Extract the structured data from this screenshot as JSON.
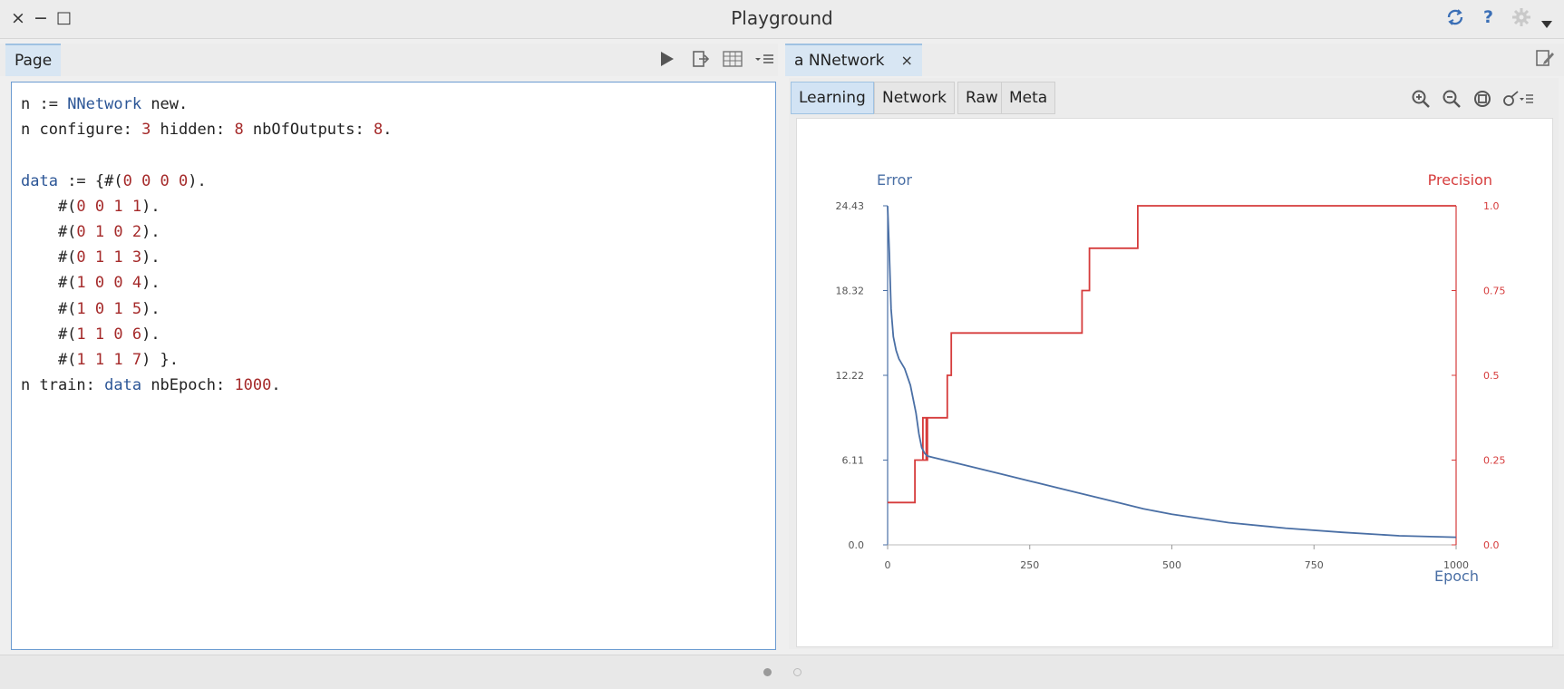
{
  "window": {
    "title": "Playground",
    "close_glyph": "×",
    "minimize_glyph": "−",
    "maximize_glyph": "□",
    "icons": [
      "sync-icon",
      "help-icon",
      "gear-icon",
      "menu-triangle-icon"
    ],
    "help_glyph": "?"
  },
  "left_tab": {
    "label": "Page",
    "tools": [
      "play-icon",
      "export-icon",
      "bindings-icon",
      "menu-icon"
    ]
  },
  "right_tab": {
    "label": "a NNetwork",
    "close_glyph": "×"
  },
  "inspector": {
    "tabs": [
      "Learning",
      "Network",
      "Raw",
      "Meta"
    ],
    "tools": [
      "zoom-in-icon",
      "zoom-out-icon",
      "fit-icon",
      "browse-icon"
    ]
  },
  "code_lines": [
    [
      [
        "n := ",
        ""
      ],
      [
        "NNetwork",
        "kw"
      ],
      [
        " new.",
        ""
      ]
    ],
    [
      [
        "n configure: ",
        ""
      ],
      [
        "3",
        "num"
      ],
      [
        " hidden: ",
        ""
      ],
      [
        "8",
        "num"
      ],
      [
        " nbOfOutputs: ",
        ""
      ],
      [
        "8",
        "num"
      ],
      [
        ".",
        ""
      ]
    ],
    [],
    [
      [
        "data",
        "kw"
      ],
      [
        " := {#(",
        ""
      ],
      [
        "0 0 0 0",
        "num"
      ],
      [
        ").",
        ""
      ]
    ],
    [
      [
        "    #(",
        ""
      ],
      [
        "0 0 1 1",
        "num"
      ],
      [
        ").",
        ""
      ]
    ],
    [
      [
        "    #(",
        ""
      ],
      [
        "0 1 0 2",
        "num"
      ],
      [
        ").",
        ""
      ]
    ],
    [
      [
        "    #(",
        ""
      ],
      [
        "0 1 1 3",
        "num"
      ],
      [
        ").",
        ""
      ]
    ],
    [
      [
        "    #(",
        ""
      ],
      [
        "1 0 0 4",
        "num"
      ],
      [
        ").",
        ""
      ]
    ],
    [
      [
        "    #(",
        ""
      ],
      [
        "1 0 1 5",
        "num"
      ],
      [
        ").",
        ""
      ]
    ],
    [
      [
        "    #(",
        ""
      ],
      [
        "1 1 0 6",
        "num"
      ],
      [
        ").",
        ""
      ]
    ],
    [
      [
        "    #(",
        ""
      ],
      [
        "1 1 1 7",
        "num"
      ],
      [
        ") }.",
        ""
      ]
    ],
    [
      [
        "n train: ",
        ""
      ],
      [
        "data",
        "kw"
      ],
      [
        " nbEpoch: ",
        ""
      ],
      [
        "1000",
        "num"
      ],
      [
        ".",
        ""
      ]
    ]
  ],
  "colors": {
    "error": "#4a6fa5",
    "precision": "#d63c3c",
    "keyword": "#2b5596",
    "number": "#a52a2a"
  },
  "chart_data": {
    "type": "line",
    "xlabel": "Epoch",
    "x_ticks": [
      "0",
      "250",
      "500",
      "750",
      "1000"
    ],
    "xlim": [
      0,
      1000
    ],
    "left_axis": {
      "label": "Error",
      "ticks": [
        "0.0",
        "6.11",
        "12.22",
        "18.32",
        "24.43"
      ],
      "ylim": [
        0,
        24.43
      ]
    },
    "right_axis": {
      "label": "Precision",
      "ticks": [
        "0.0",
        "0.25",
        "0.5",
        "0.75",
        "1.0"
      ],
      "ylim": [
        0,
        1
      ]
    },
    "series": [
      {
        "name": "Error",
        "axis": "left",
        "x": [
          0,
          3,
          6,
          10,
          15,
          20,
          30,
          40,
          50,
          55,
          60,
          65,
          70,
          80,
          100,
          150,
          200,
          250,
          300,
          350,
          400,
          450,
          500,
          550,
          600,
          700,
          800,
          900,
          1000
        ],
        "y": [
          24.4,
          21,
          17,
          15,
          14,
          13.4,
          12.7,
          11.5,
          9.5,
          8,
          7,
          6.6,
          6.4,
          6.3,
          6.1,
          5.6,
          5.1,
          4.6,
          4.1,
          3.6,
          3.1,
          2.6,
          2.2,
          1.9,
          1.6,
          1.2,
          0.9,
          0.65,
          0.55
        ]
      },
      {
        "name": "Precision",
        "axis": "right",
        "x": [
          0,
          48,
          48,
          62,
          62,
          68,
          68,
          62,
          70,
          70,
          105,
          105,
          112,
          112,
          122,
          122,
          342,
          342,
          355,
          355,
          365,
          365,
          440,
          440,
          1000
        ],
        "y": [
          0.125,
          0.125,
          0.25,
          0.25,
          0.375,
          0.375,
          0.25,
          0.25,
          0.25,
          0.375,
          0.375,
          0.5,
          0.5,
          0.625,
          0.625,
          0.625,
          0.625,
          0.75,
          0.75,
          0.875,
          0.875,
          0.875,
          0.875,
          1.0,
          1.0
        ]
      }
    ]
  }
}
